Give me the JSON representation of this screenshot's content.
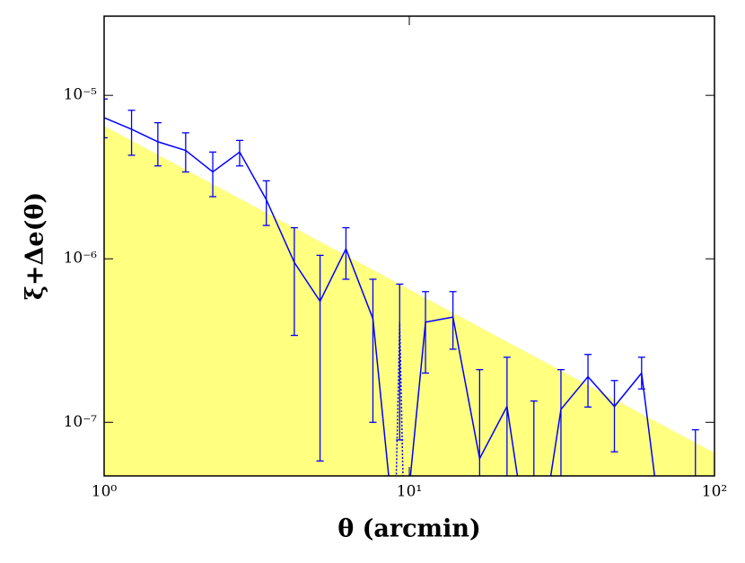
{
  "chart_data": {
    "type": "errorbar-line",
    "xlabel": "θ (arcmin)",
    "ylabel": "ξ+Δe(θ)",
    "xscale": "log",
    "yscale": "log",
    "xlim": [
      1,
      100
    ],
    "ylim": [
      4.7e-08,
      3.05e-05
    ],
    "xticks": [
      {
        "value": 1,
        "label": "10⁰"
      },
      {
        "value": 10,
        "label": "10¹"
      },
      {
        "value": 100,
        "label": "10²"
      }
    ],
    "yticks": [
      {
        "value": 1e-07,
        "label": "10⁻⁷"
      },
      {
        "value": 1e-06,
        "label": "10⁻⁶"
      },
      {
        "value": 1e-05,
        "label": "10⁻⁵"
      }
    ],
    "band": {
      "x": [
        1,
        100
      ],
      "values": [
        6.5e-06,
        6.5e-08
      ],
      "color": "#ffff80"
    },
    "series": [
      {
        "style": "solid",
        "color": "#0000ff",
        "x": [
          1,
          1.23,
          1.5,
          1.85,
          2.27,
          2.78,
          3.4,
          4.2,
          5.1,
          6.2,
          7.6,
          9.3,
          11.3,
          13.9,
          17,
          20.9,
          25.6,
          31.4,
          38.5,
          47,
          57.7,
          70.7,
          86.6
        ],
        "values": [
          7.3e-06,
          6.2e-06,
          5.2e-06,
          4.6e-06,
          3.4e-06,
          4.5e-06,
          2.3e-06,
          9.5e-07,
          5.5e-07,
          1.15e-06,
          4.3e-07,
          1e-08,
          4.1e-07,
          4.4e-07,
          6e-08,
          1.25e-07,
          1e-08,
          1.2e-07,
          1.9e-07,
          1.25e-07,
          2e-07,
          1e-08,
          4e-08
        ],
        "lower": [
          5.5e-06,
          4.3e-06,
          3.7e-06,
          3.4e-06,
          2.4e-06,
          3.7e-06,
          1.6e-06,
          3.4e-07,
          5.8e-08,
          7.5e-07,
          1e-07,
          null,
          2e-07,
          2.8e-07,
          1e-08,
          1e-08,
          1e-08,
          1e-08,
          1.24e-07,
          6.6e-08,
          1.6e-07,
          null,
          1e-08
        ],
        "upper": [
          9.5e-06,
          8.1e-06,
          6.8e-06,
          5.9e-06,
          4.5e-06,
          5.3e-06,
          3e-06,
          1.55e-06,
          1.05e-06,
          1.55e-06,
          7.5e-07,
          null,
          6.3e-07,
          6.3e-07,
          2.1e-07,
          2.5e-07,
          1.35e-07,
          2.1e-07,
          2.6e-07,
          1.8e-07,
          2.5e-07,
          null,
          9e-08
        ]
      },
      {
        "style": "dotted",
        "color": "#0000ff",
        "x": [
          8.9,
          9.3,
          9.7
        ],
        "values": [
          1e-08,
          4.1e-07,
          1e-08
        ],
        "lower": [
          null,
          7.8e-08,
          null
        ],
        "upper": [
          null,
          7e-07,
          null
        ]
      }
    ]
  }
}
